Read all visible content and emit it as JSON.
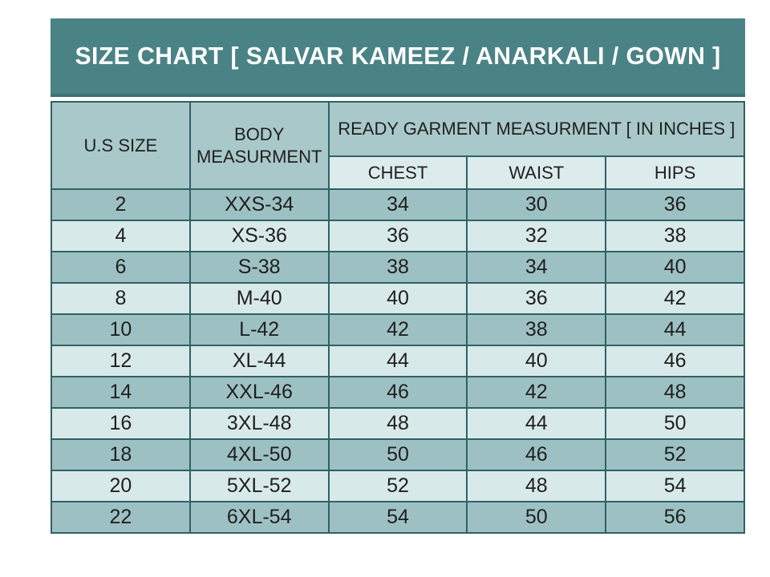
{
  "colors": {
    "band_teal": "#4a8385",
    "band_edge": "#3e7376",
    "header_cell_bg": "#a9c8c9",
    "subheader_cell_bg": "#dcebec",
    "row_dark_bg": "#9dc1c2",
    "row_light_bg": "#d8e9ea",
    "border": "#2f6164",
    "title_text": "#ffffff",
    "cell_text": "#1f1f1f"
  },
  "chart_data": {
    "type": "table",
    "title": "SIZE CHART [ SALVAR KAMEEZ / ANARKALI / GOWN ]",
    "header": {
      "us_size": "U.S SIZE",
      "body_measurement": "BODY MEASURMENT",
      "ready_garment_group": "READY GARMENT MEASURMENT [ IN INCHES ]",
      "sub_columns": [
        "CHEST",
        "WAIST",
        "HIPS"
      ]
    },
    "rows": [
      {
        "us_size": "2",
        "body": "XXS-34",
        "chest": "34",
        "waist": "30",
        "hips": "36"
      },
      {
        "us_size": "4",
        "body": "XS-36",
        "chest": "36",
        "waist": "32",
        "hips": "38"
      },
      {
        "us_size": "6",
        "body": "S-38",
        "chest": "38",
        "waist": "34",
        "hips": "40"
      },
      {
        "us_size": "8",
        "body": "M-40",
        "chest": "40",
        "waist": "36",
        "hips": "42"
      },
      {
        "us_size": "10",
        "body": "L-42",
        "chest": "42",
        "waist": "38",
        "hips": "44"
      },
      {
        "us_size": "12",
        "body": "XL-44",
        "chest": "44",
        "waist": "40",
        "hips": "46"
      },
      {
        "us_size": "14",
        "body": "XXL-46",
        "chest": "46",
        "waist": "42",
        "hips": "48"
      },
      {
        "us_size": "16",
        "body": "3XL-48",
        "chest": "48",
        "waist": "44",
        "hips": "50"
      },
      {
        "us_size": "18",
        "body": "4XL-50",
        "chest": "50",
        "waist": "46",
        "hips": "52"
      },
      {
        "us_size": "20",
        "body": "5XL-52",
        "chest": "52",
        "waist": "48",
        "hips": "54"
      },
      {
        "us_size": "22",
        "body": "6XL-54",
        "chest": "54",
        "waist": "50",
        "hips": "56"
      }
    ]
  }
}
